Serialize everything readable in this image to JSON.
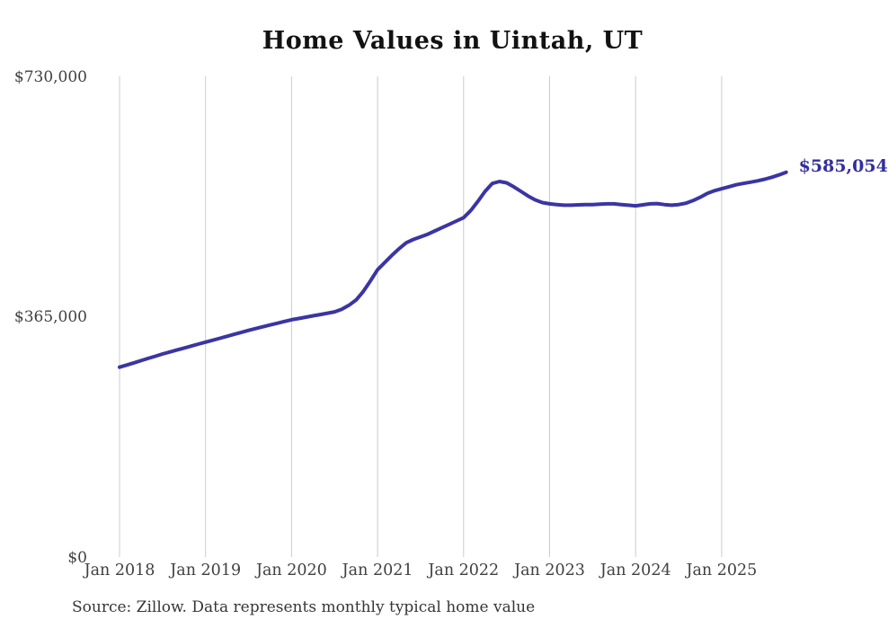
{
  "page": {
    "background_color": "#ffffff"
  },
  "header": {
    "title": "Home Values in Uintah, UT"
  },
  "footer": {
    "source_note": "Source: Zillow. Data represents monthly typical home value"
  },
  "annotations": {
    "end_value_label": "$585,054"
  },
  "colors": {
    "line": "#3b35a3",
    "end_label": "#332f9d",
    "gridline": "#cccccc",
    "axis_text": "#404040",
    "title_text": "#121212",
    "source_text": "#363636"
  },
  "chart_data": {
    "type": "line",
    "title": "Home Values in Uintah, UT",
    "xlabel": "",
    "ylabel": "",
    "legend": "none",
    "grid": "vertical-only",
    "ylim": [
      0,
      730000
    ],
    "y_ticks": [
      {
        "label": "$0",
        "value": 0
      },
      {
        "label": "$365,000",
        "value": 365000
      },
      {
        "label": "$730,000",
        "value": 730000
      }
    ],
    "x_tick_labels": [
      "Jan 2018",
      "Jan 2019",
      "Jan 2020",
      "Jan 2021",
      "Jan 2022",
      "Jan 2023",
      "Jan 2024",
      "Jan 2025"
    ],
    "x_range": {
      "start": "2018-01",
      "end": "2025-10",
      "frequency": "monthly"
    },
    "final_value": 585054,
    "final_value_label": "$585,054",
    "series": [
      {
        "name": "Typical home value",
        "values": [
          289000,
          292300,
          295600,
          299000,
          302400,
          305700,
          309000,
          312000,
          315000,
          318000,
          321000,
          324000,
          327000,
          330000,
          333000,
          336000,
          339000,
          342000,
          345000,
          347700,
          350400,
          353100,
          355700,
          358400,
          361000,
          363000,
          365000,
          367000,
          369000,
          371000,
          373000,
          377000,
          383000,
          391000,
          404000,
          420000,
          437000,
          448000,
          459000,
          469000,
          478000,
          483000,
          487000,
          491000,
          496000,
          501000,
          506000,
          511000,
          516000,
          527000,
          541000,
          556000,
          568000,
          571000,
          569000,
          563000,
          556000,
          549000,
          543000,
          539000,
          537000,
          536000,
          535000,
          535000,
          535500,
          536000,
          536000,
          536500,
          537000,
          537000,
          536000,
          535000,
          534000,
          535500,
          537000,
          537500,
          536000,
          535000,
          536000,
          538000,
          542000,
          547000,
          553000,
          557000,
          560000,
          563000,
          566000,
          568000,
          570000,
          572000,
          574500,
          577500,
          581000,
          585054
        ]
      }
    ]
  }
}
